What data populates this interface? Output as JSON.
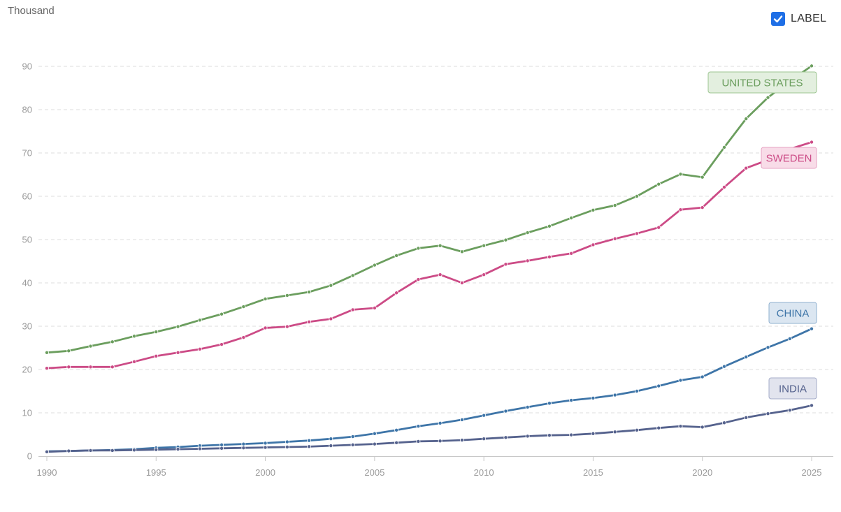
{
  "unit_label": "Thousand",
  "label_toggle": {
    "text": "LABEL",
    "checked": true,
    "accent": "#1f6fe6"
  },
  "chart_data": {
    "type": "line",
    "x": [
      1990,
      1991,
      1992,
      1993,
      1994,
      1995,
      1996,
      1997,
      1998,
      1999,
      2000,
      2001,
      2002,
      2003,
      2004,
      2005,
      2006,
      2007,
      2008,
      2009,
      2010,
      2011,
      2012,
      2013,
      2014,
      2015,
      2016,
      2017,
      2018,
      2019,
      2020,
      2021,
      2022,
      2023,
      2024,
      2025
    ],
    "ylim": [
      0,
      90
    ],
    "yticks": [
      0,
      10,
      20,
      30,
      40,
      50,
      60,
      70,
      80,
      90
    ],
    "xticks": [
      1990,
      1995,
      2000,
      2005,
      2010,
      2015,
      2020,
      2025
    ],
    "grid": true,
    "series": [
      {
        "name": "UNITED STATES",
        "color": "#6b9e5e",
        "label_bg": "#e3efdf",
        "label_border": "#9dc592",
        "values": [
          23.9,
          24.3,
          25.4,
          26.4,
          27.7,
          28.7,
          29.9,
          31.4,
          32.8,
          34.5,
          36.3,
          37.1,
          37.9,
          39.4,
          41.7,
          44.1,
          46.3,
          48.0,
          48.6,
          47.2,
          48.6,
          49.9,
          51.6,
          53.1,
          55.0,
          56.8,
          57.9,
          60.0,
          62.8,
          65.1,
          64.4,
          71.3,
          77.9,
          82.8,
          86.6,
          90.1
        ]
      },
      {
        "name": "SWEDEN",
        "color": "#cc4b86",
        "label_bg": "#f8dce8",
        "label_border": "#e6a2c2",
        "values": [
          20.3,
          20.6,
          20.6,
          20.6,
          21.8,
          23.1,
          23.9,
          24.7,
          25.8,
          27.4,
          29.6,
          29.9,
          31.0,
          31.7,
          33.8,
          34.2,
          37.7,
          40.8,
          41.9,
          40.0,
          41.9,
          44.3,
          45.1,
          46.0,
          46.8,
          48.8,
          50.2,
          51.4,
          52.8,
          56.9,
          57.4,
          62.1,
          66.5,
          68.4,
          70.9,
          72.5
        ]
      },
      {
        "name": "CHINA",
        "color": "#3e75a8",
        "label_bg": "#dbe6f1",
        "label_border": "#8fb0cf",
        "values": [
          1.1,
          1.2,
          1.3,
          1.4,
          1.6,
          1.9,
          2.1,
          2.4,
          2.6,
          2.8,
          3.0,
          3.3,
          3.6,
          4.0,
          4.5,
          5.2,
          6.0,
          6.9,
          7.6,
          8.4,
          9.4,
          10.4,
          11.3,
          12.2,
          12.9,
          13.4,
          14.1,
          15.0,
          16.2,
          17.5,
          18.3,
          20.7,
          22.9,
          25.1,
          27.1,
          29.4
        ]
      },
      {
        "name": "INDIA",
        "color": "#55628d",
        "label_bg": "#e2e4ee",
        "label_border": "#a4abc8",
        "values": [
          1.0,
          1.2,
          1.3,
          1.3,
          1.4,
          1.5,
          1.6,
          1.7,
          1.8,
          1.9,
          2.0,
          2.1,
          2.2,
          2.4,
          2.6,
          2.8,
          3.1,
          3.4,
          3.5,
          3.7,
          4.0,
          4.3,
          4.6,
          4.8,
          4.9,
          5.2,
          5.6,
          6.0,
          6.5,
          6.9,
          6.7,
          7.7,
          8.9,
          9.8,
          10.6,
          11.7
        ]
      }
    ]
  }
}
